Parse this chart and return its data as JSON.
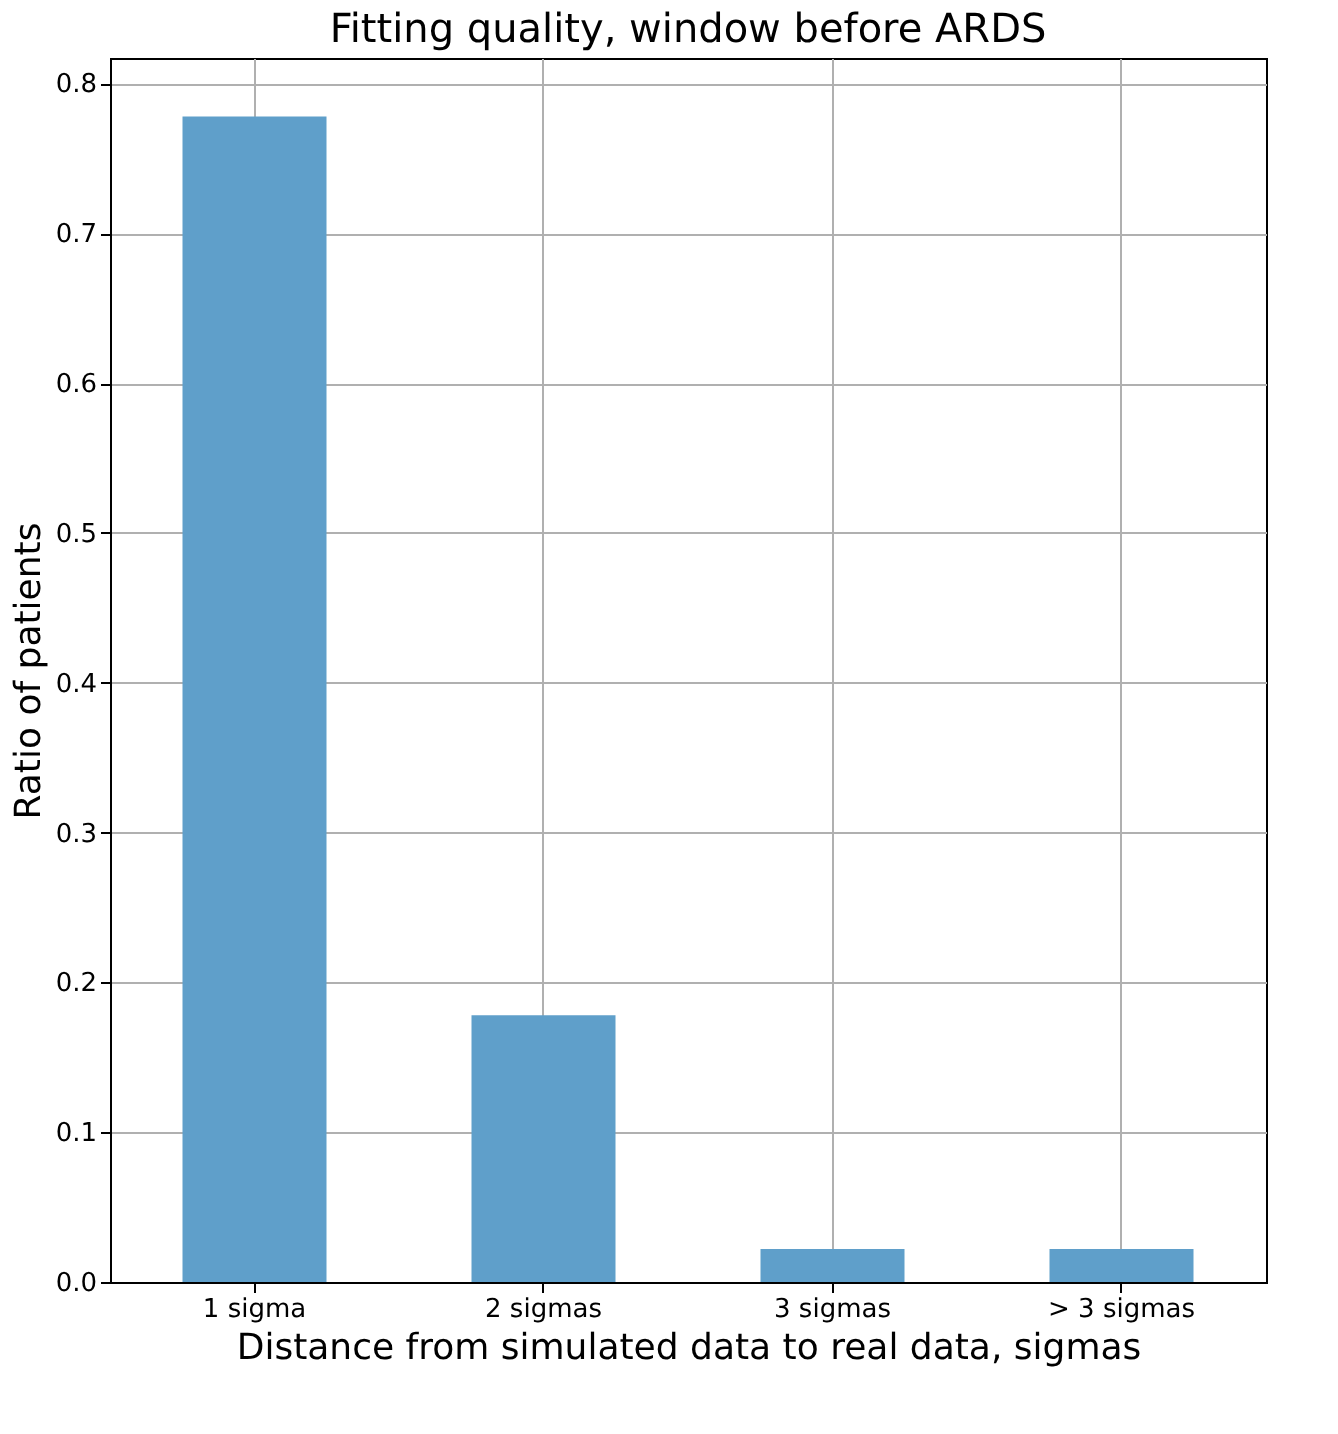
{
  "chart_data": {
    "type": "bar",
    "title": "Fitting quality, window before ARDS",
    "xlabel": "Distance from simulated data to real data, sigmas",
    "ylabel": "Ratio of patients",
    "categories": [
      "1 sigma",
      "2 sigmas",
      "3 sigmas",
      "> 3 sigmas"
    ],
    "values": [
      0.778,
      0.178,
      0.022,
      0.022
    ],
    "color": "#5f9fca",
    "ylim": [
      0,
      0.817
    ],
    "yticks": [
      {
        "value": 0,
        "label": "0.0"
      },
      0.1,
      0.2,
      0.3,
      0.4,
      0.5,
      0.6,
      0.7,
      0.8
    ],
    "grid": true
  }
}
